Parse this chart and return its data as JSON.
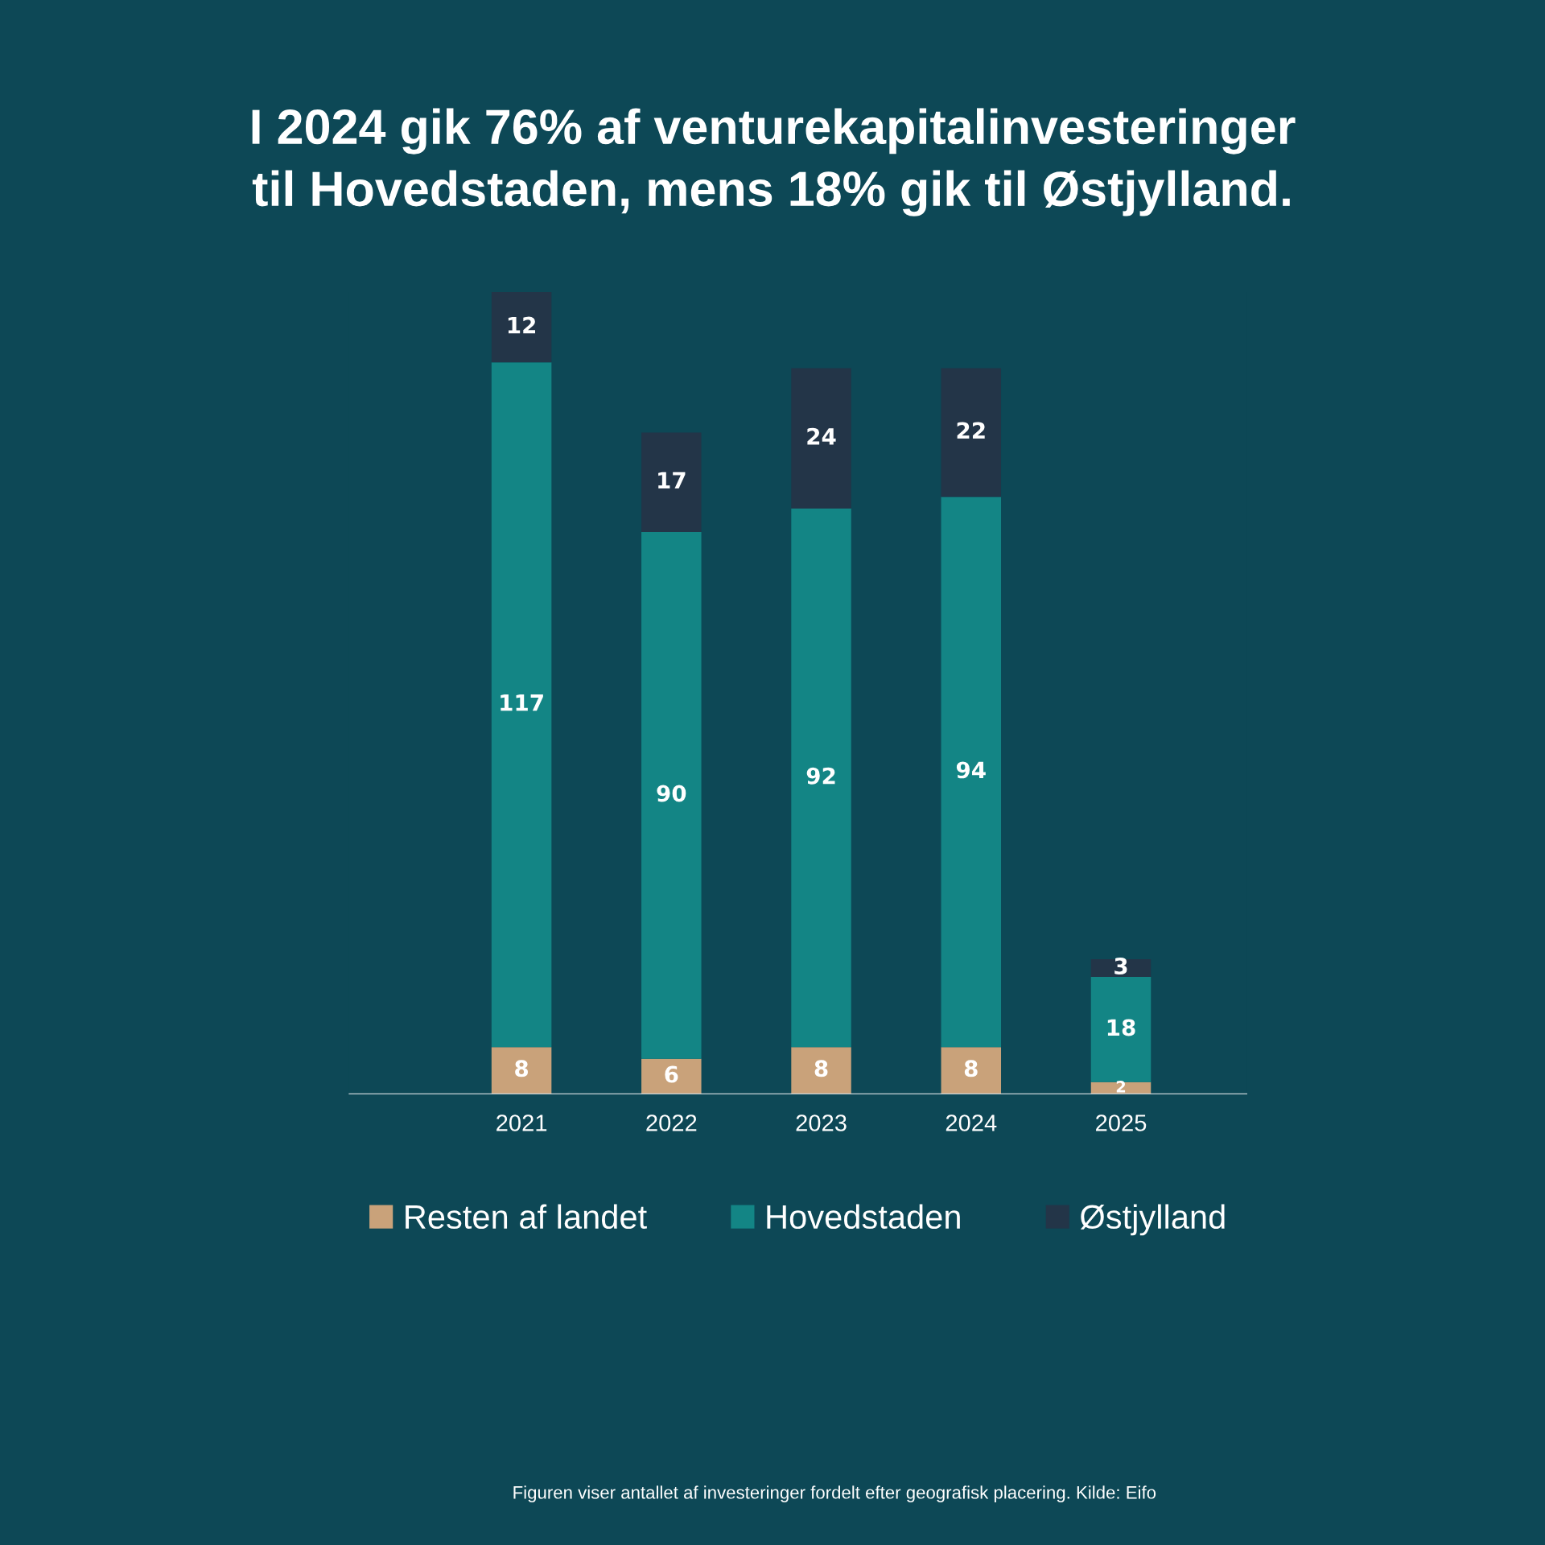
{
  "chart_data": {
    "type": "bar",
    "title": "I 2024 gik 76% af venturekapitalinvesteringer\ntil Hovedstaden, mens 18% gik til Østjylland.",
    "categories": [
      "2021",
      "2022",
      "2023",
      "2024",
      "2025"
    ],
    "stacked": true,
    "data_labels": true,
    "legend": "bottom",
    "grid": false,
    "series": [
      {
        "name": "Resten af landet",
        "color": "#c9a27a",
        "values": [
          8,
          6,
          8,
          8,
          2
        ]
      },
      {
        "name": "Hovedstaden",
        "color": "#138585",
        "values": [
          117,
          90,
          92,
          94,
          18
        ]
      },
      {
        "name": "Østjylland",
        "color": "#233548",
        "values": [
          12,
          17,
          24,
          22,
          3
        ]
      }
    ],
    "annotations": [
      "Figuren viser antallet af investeringer fordelt efter geografisk placering. Kilde: Eifo"
    ]
  }
}
